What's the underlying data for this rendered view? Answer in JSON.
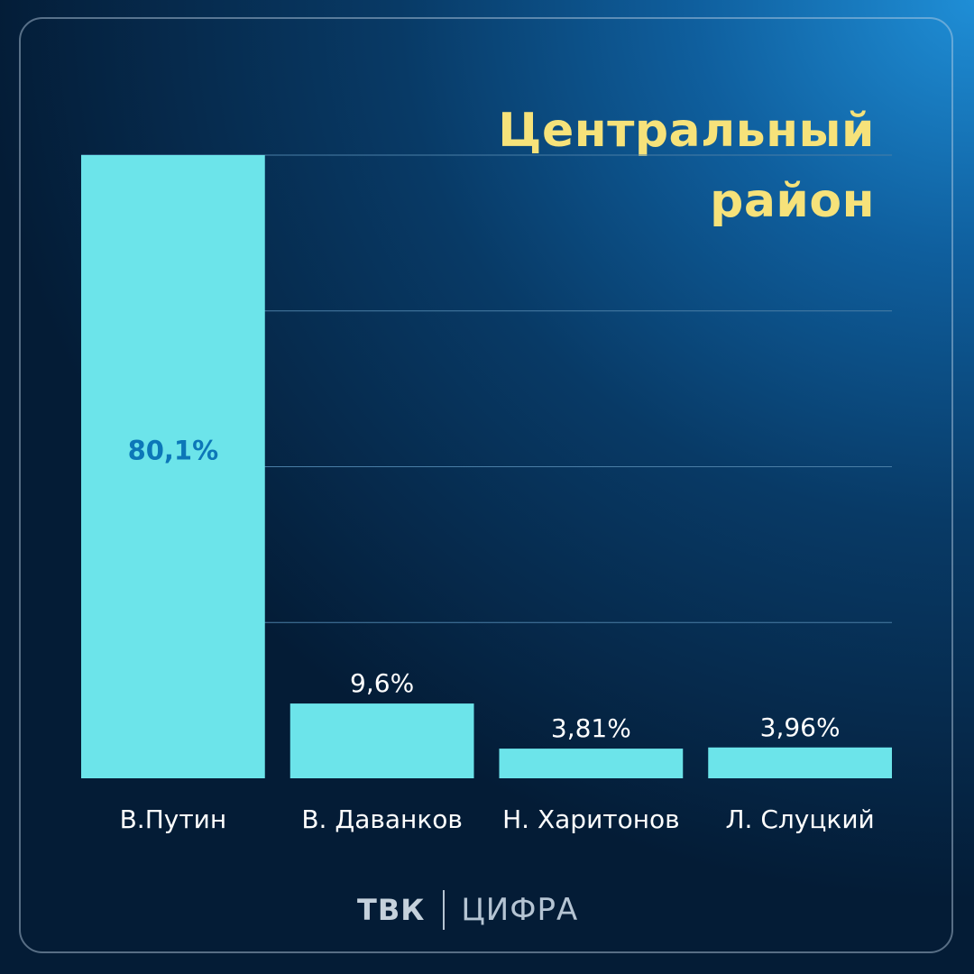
{
  "chart_data": {
    "type": "bar",
    "title": [
      "Центральный",
      "район"
    ],
    "categories": [
      "В.Путин",
      "В. Даванков",
      "Н. Харитонов",
      "Л. Слуцкий"
    ],
    "values": [
      80.1,
      9.6,
      3.81,
      3.96
    ],
    "value_labels": [
      "80,1%",
      "9,6%",
      "3,81%",
      "3,96%"
    ],
    "ylim": [
      0,
      80
    ],
    "grid": true,
    "colors": {
      "bar": "#6ce4ea",
      "inside_label": "#0c77b8",
      "outside_label": "#ffffff",
      "category_label": "#ffffff",
      "title": "#f6e27a",
      "grid": "#4a7ea6"
    }
  },
  "logo": {
    "brand": "ТВК",
    "sub": "ЦИФРА"
  }
}
